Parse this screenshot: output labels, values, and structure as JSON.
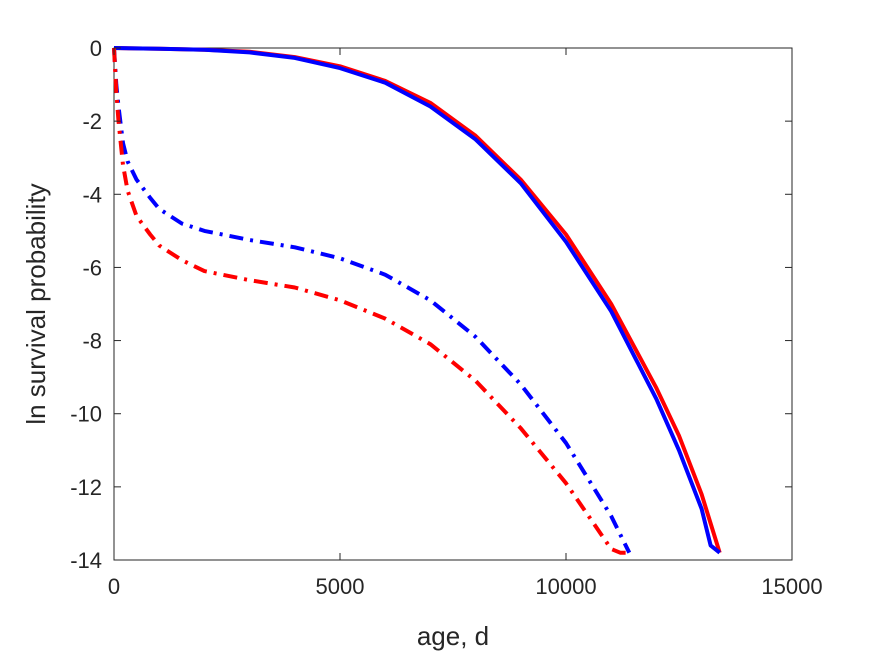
{
  "chart_data": {
    "type": "line",
    "title": "",
    "xlabel": "age, d",
    "ylabel": "ln survival probability",
    "xlim": [
      0,
      15000
    ],
    "ylim": [
      -14,
      0
    ],
    "xticks": [
      0,
      5000,
      10000,
      15000
    ],
    "yticks": [
      -14,
      -12,
      -10,
      -8,
      -6,
      -4,
      -2,
      0
    ],
    "xtick_labels": [
      "0",
      "5000",
      "10000",
      "15000"
    ],
    "ytick_labels": [
      "-14",
      "-12",
      "-10",
      "-8",
      "-6",
      "-4",
      "-2",
      "0"
    ],
    "grid": false,
    "legend": "none",
    "series": [
      {
        "color": "#ff0000",
        "style": "solid",
        "x": [
          0,
          1000,
          2000,
          3000,
          4000,
          5000,
          6000,
          7000,
          8000,
          9000,
          10000,
          11000,
          12000,
          12500,
          13000,
          13200,
          13400
        ],
        "y": [
          0,
          -0.02,
          -0.05,
          -0.1,
          -0.25,
          -0.5,
          -0.9,
          -1.5,
          -2.4,
          -3.6,
          -5.1,
          -7.0,
          -9.3,
          -10.6,
          -12.2,
          -13.0,
          -13.8
        ]
      },
      {
        "color": "#0000ff",
        "style": "solid",
        "x": [
          0,
          1000,
          2000,
          3000,
          4000,
          5000,
          6000,
          7000,
          8000,
          9000,
          10000,
          11000,
          12000,
          12500,
          13000,
          13200,
          13400
        ],
        "y": [
          0,
          -0.02,
          -0.05,
          -0.12,
          -0.27,
          -0.55,
          -0.95,
          -1.6,
          -2.5,
          -3.7,
          -5.3,
          -7.2,
          -9.6,
          -11.0,
          -12.6,
          -13.6,
          -13.8
        ]
      },
      {
        "color": "#0000ff",
        "style": "dashdot",
        "x": [
          0,
          50,
          100,
          200,
          300,
          500,
          800,
          1000,
          1500,
          2000,
          3000,
          4000,
          5000,
          6000,
          7000,
          8000,
          9000,
          10000,
          10500,
          11000,
          11200,
          11400
        ],
        "y": [
          0,
          -1.0,
          -1.6,
          -2.6,
          -3.1,
          -3.6,
          -4.1,
          -4.4,
          -4.8,
          -5.0,
          -5.25,
          -5.45,
          -5.75,
          -6.2,
          -6.9,
          -7.9,
          -9.2,
          -10.8,
          -11.8,
          -12.8,
          -13.3,
          -13.8
        ]
      },
      {
        "color": "#ff0000",
        "style": "dashdot",
        "x": [
          0,
          50,
          100,
          200,
          300,
          500,
          800,
          1000,
          1500,
          2000,
          3000,
          4000,
          5000,
          6000,
          7000,
          8000,
          9000,
          10000,
          10500,
          11000,
          11200,
          11350
        ],
        "y": [
          0,
          -1.2,
          -2.0,
          -3.2,
          -3.9,
          -4.6,
          -5.1,
          -5.4,
          -5.8,
          -6.1,
          -6.35,
          -6.55,
          -6.9,
          -7.4,
          -8.1,
          -9.1,
          -10.4,
          -11.9,
          -12.8,
          -13.7,
          -13.8,
          -13.8
        ]
      }
    ]
  }
}
